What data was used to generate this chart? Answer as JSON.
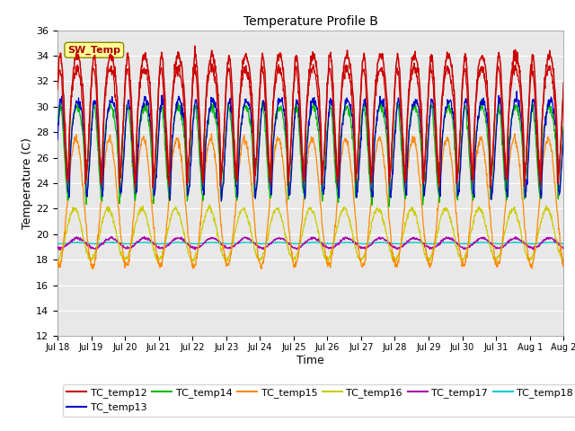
{
  "title": "Temperature Profile B",
  "xlabel": "Time",
  "ylabel": "Temperature (C)",
  "ylim": [
    12,
    36
  ],
  "yticks": [
    12,
    14,
    16,
    18,
    20,
    22,
    24,
    26,
    28,
    30,
    32,
    34,
    36
  ],
  "sw_temp_annotation": "SW_Temp",
  "series_colors": {
    "TC_temp12": "#cc0000",
    "TC_temp13": "#0000cc",
    "TC_temp14": "#00bb00",
    "TC_temp15": "#ff8800",
    "TC_temp16": "#cccc00",
    "TC_temp17": "#aa00aa",
    "TC_temp18": "#00cccc"
  },
  "bg_color": "#e8e8e8",
  "n_days": 15,
  "figsize": [
    6.4,
    4.8
  ],
  "dpi": 100
}
